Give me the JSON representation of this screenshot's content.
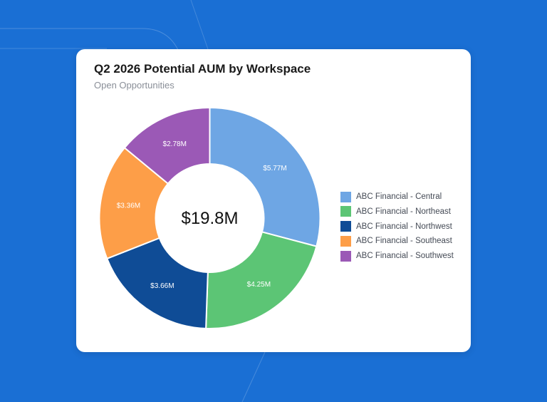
{
  "chart_data": {
    "type": "pie",
    "variant": "donut",
    "title": "Q2 2026 Potential AUM by Workspace",
    "subtitle": "Open Opportunities",
    "center_label": "$19.8M",
    "legend_position": "right",
    "slices": [
      {
        "name": "ABC Financial - Central",
        "value": 5.77,
        "label": "$5.77M",
        "color": "#6ea6e4"
      },
      {
        "name": "ABC Financial - Northeast",
        "value": 4.25,
        "label": "$4.25M",
        "color": "#5cc575"
      },
      {
        "name": "ABC Financial - Northwest",
        "value": 3.66,
        "label": "$3.66M",
        "color": "#0f4c96"
      },
      {
        "name": "ABC Financial - Southeast",
        "value": 3.36,
        "label": "$3.36M",
        "color": "#fd9e48"
      },
      {
        "name": "ABC Financial - Southwest",
        "value": 2.78,
        "label": "$2.78M",
        "color": "#9b59b6"
      }
    ]
  }
}
